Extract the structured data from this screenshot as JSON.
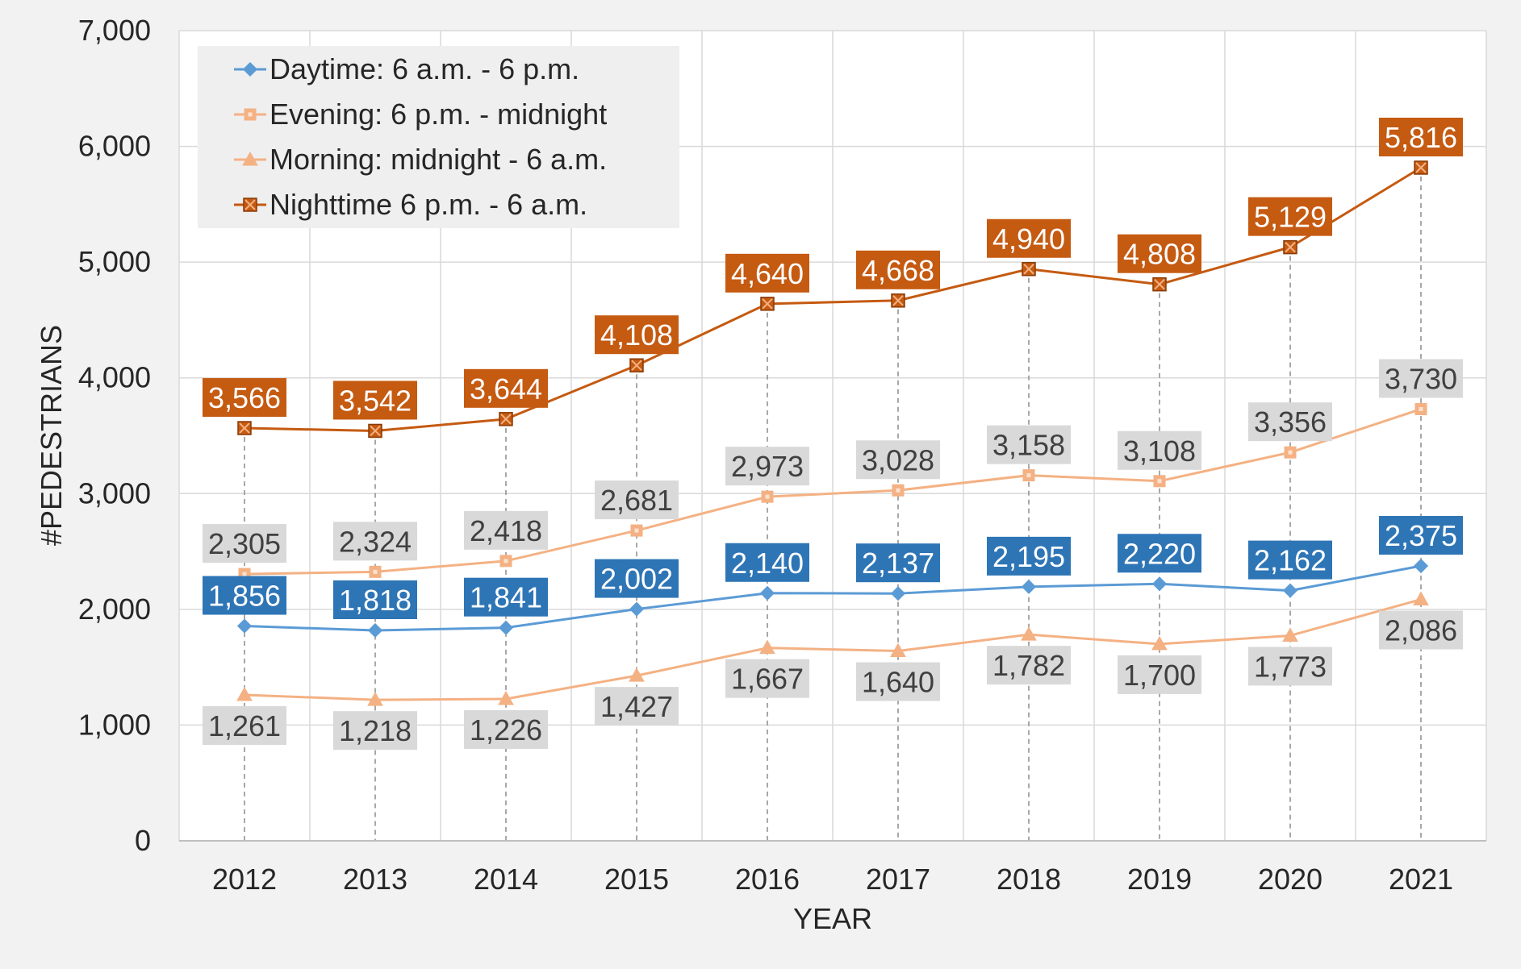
{
  "chart_data": {
    "type": "line",
    "title": "",
    "xlabel": "YEAR",
    "ylabel": "#PEDESTRIANS",
    "ylim": [
      0,
      7000
    ],
    "y_ticks": [
      "0",
      "1,000",
      "2,000",
      "3,000",
      "4,000",
      "5,000",
      "6,000",
      "7,000"
    ],
    "y_tick_values": [
      0,
      1000,
      2000,
      3000,
      4000,
      5000,
      6000,
      7000
    ],
    "categories": [
      "2012",
      "2013",
      "2014",
      "2015",
      "2016",
      "2017",
      "2018",
      "2019",
      "2020",
      "2021"
    ],
    "grid": true,
    "legend_position": "top-left",
    "series": [
      {
        "name": "Daytime: 6 a.m. - 6 p.m.",
        "values": [
          1856,
          1818,
          1841,
          2002,
          2140,
          2137,
          2195,
          2220,
          2162,
          2375
        ],
        "labels": [
          "1,856",
          "1,818",
          "1,841",
          "2,002",
          "2,140",
          "2,137",
          "2,195",
          "2,220",
          "2,162",
          "2,375"
        ],
        "color": "#5b9bd5",
        "label_bg": "#2e75b6",
        "label_color": "#ffffff",
        "marker": "diamond",
        "label_side": "above"
      },
      {
        "name": "Evening: 6 p.m. - midnight",
        "values": [
          2305,
          2324,
          2418,
          2681,
          2973,
          3028,
          3158,
          3108,
          3356,
          3730
        ],
        "labels": [
          "2,305",
          "2,324",
          "2,418",
          "2,681",
          "2,973",
          "3,028",
          "3,158",
          "3,108",
          "3,356",
          "3,730"
        ],
        "color": "#f4b183",
        "label_bg": "#d9d9d9",
        "label_color": "#404040",
        "marker": "square",
        "label_side": "above"
      },
      {
        "name": "Morning: midnight - 6 a.m.",
        "values": [
          1261,
          1218,
          1226,
          1427,
          1667,
          1640,
          1782,
          1700,
          1773,
          2086
        ],
        "labels": [
          "1,261",
          "1,218",
          "1,226",
          "1,427",
          "1,667",
          "1,640",
          "1,782",
          "1,700",
          "1,773",
          "2,086"
        ],
        "color": "#f4b183",
        "label_bg": "#d9d9d9",
        "label_color": "#404040",
        "marker": "triangle",
        "label_side": "below"
      },
      {
        "name": "Nighttime 6 p.m. - 6 a.m.",
        "values": [
          3566,
          3542,
          3644,
          4108,
          4640,
          4668,
          4940,
          4808,
          5129,
          5816
        ],
        "labels": [
          "3,566",
          "3,542",
          "3,644",
          "4,108",
          "4,640",
          "4,668",
          "4,940",
          "4,808",
          "5,129",
          "5,816"
        ],
        "color": "#c55a11",
        "label_bg": "#c55a11",
        "label_color": "#ffffff",
        "marker": "crossed-square",
        "label_side": "above"
      }
    ]
  }
}
